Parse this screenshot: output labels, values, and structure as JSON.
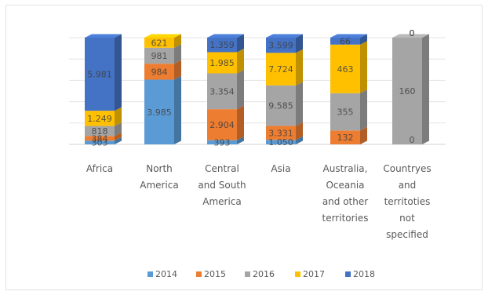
{
  "chart_data": {
    "type": "bar",
    "stacked": true,
    "style": "3d-cylinder-column",
    "title": "",
    "xlabel": "",
    "ylabel": "",
    "grid": true,
    "legend_position": "bottom",
    "categories": [
      [
        "Africa"
      ],
      [
        "North",
        "America"
      ],
      [
        "Central",
        "and South",
        "America"
      ],
      [
        "Asia"
      ],
      [
        "Australia,",
        "Oceania",
        "and other",
        "territories"
      ],
      [
        "Countryes",
        "and",
        "territoties",
        "not",
        "specified"
      ]
    ],
    "series": [
      {
        "name": "2014",
        "color": "#5b9bd5",
        "values": [
          303,
          3985,
          393,
          1050,
          0,
          0
        ],
        "labels": [
          "303",
          "3.985",
          "393",
          "1.050",
          "",
          ""
        ]
      },
      {
        "name": "2015",
        "color": "#ed7d31",
        "values": [
          384,
          984,
          2904,
          3331,
          132,
          0
        ],
        "labels": [
          "384",
          "984",
          "2.904",
          "3.331",
          "132",
          "0"
        ]
      },
      {
        "name": "2016",
        "color": "#a5a5a5",
        "values": [
          818,
          981,
          3354,
          9585,
          355,
          160
        ],
        "labels": [
          "818",
          "981",
          "3.354",
          "9.585",
          "355",
          "160"
        ]
      },
      {
        "name": "2017",
        "color": "#ffc000",
        "values": [
          1249,
          621,
          1985,
          7724,
          463,
          0
        ],
        "labels": [
          "1.249",
          "621",
          "1.985",
          "7.724",
          "463",
          "0"
        ]
      },
      {
        "name": "2018",
        "color": "#4472c4",
        "values": [
          5981,
          0,
          1359,
          3599,
          66,
          0
        ],
        "labels": [
          "5.981",
          "",
          "1.359",
          "3.599",
          "66",
          "0"
        ]
      }
    ]
  }
}
